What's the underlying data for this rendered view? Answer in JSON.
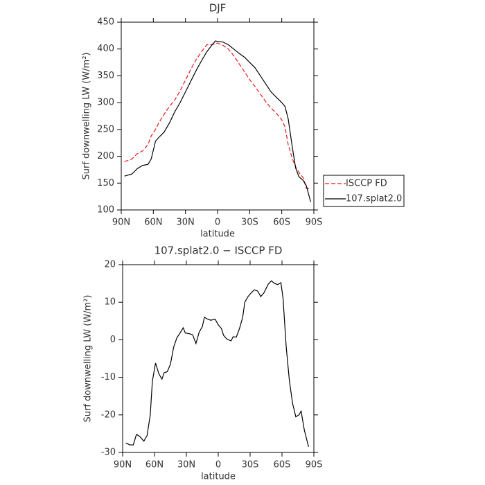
{
  "chart_data": [
    {
      "type": "line",
      "title": "DJF",
      "xlabel": "latitude",
      "ylabel": "Surf downwelling LW (W/m²)",
      "x": [
        87,
        80,
        75,
        70,
        65,
        62,
        58,
        55,
        50,
        45,
        40,
        35,
        30,
        25,
        20,
        15,
        10,
        5,
        2,
        0,
        -5,
        -10,
        -15,
        -20,
        -25,
        -30,
        -35,
        -40,
        -45,
        -50,
        -55,
        -60,
        -63,
        -66,
        -70,
        -73,
        -76,
        -80,
        -83,
        -87
      ],
      "series": [
        {
          "name": "ISCCP FD",
          "color": "#e8151b",
          "style": "dashed",
          "values": [
            190,
            195,
            205,
            210,
            222,
            238,
            250,
            262,
            278,
            293,
            305,
            322,
            342,
            362,
            380,
            395,
            408,
            408,
            410,
            411,
            407,
            400,
            388,
            373,
            358,
            343,
            330,
            316,
            302,
            290,
            280,
            268,
            255,
            222,
            195,
            180,
            170,
            160,
            140,
            140
          ]
        },
        {
          "name": "107.splat2.0",
          "color": "#000000",
          "style": "solid",
          "values": [
            163,
            167,
            177,
            183,
            185,
            195,
            228,
            235,
            245,
            262,
            283,
            300,
            320,
            340,
            360,
            378,
            395,
            408,
            415,
            414,
            413,
            408,
            400,
            392,
            385,
            375,
            365,
            350,
            335,
            320,
            310,
            300,
            293,
            270,
            215,
            178,
            162,
            155,
            145,
            115
          ]
        }
      ],
      "xlim": [
        90,
        -90
      ],
      "xticks": [
        {
          "value": 90,
          "label": "90N"
        },
        {
          "value": 60,
          "label": "60N"
        },
        {
          "value": 30,
          "label": "30N"
        },
        0,
        {
          "value": -30,
          "label": "30S"
        },
        {
          "value": -60,
          "label": "60S"
        },
        {
          "value": -90,
          "label": "90S"
        }
      ],
      "ylim": [
        100,
        450
      ],
      "yticks": [
        100,
        150,
        200,
        250,
        300,
        350,
        400,
        450
      ],
      "legend": "right"
    },
    {
      "type": "line",
      "title": "107.splat2.0 − ISCCP FD",
      "xlabel": "latitude",
      "ylabel": "Surf downwelling LW (W/m²)",
      "x": [
        87,
        83,
        80,
        77,
        74,
        70,
        67,
        64,
        62,
        59,
        56,
        53,
        51,
        48,
        45,
        42,
        39,
        36,
        33,
        31,
        27,
        24,
        21,
        18,
        15,
        13,
        10,
        7,
        3,
        0,
        -3,
        -5,
        -8,
        -12,
        -14,
        -17,
        -20,
        -23,
        -25,
        -28,
        -31,
        -34,
        -37,
        -40,
        -43,
        -47,
        -50,
        -53,
        -56,
        -59,
        -61,
        -64,
        -67,
        -70,
        -73,
        -76,
        -78,
        -81,
        -85
      ],
      "series": [
        {
          "color": "#000000",
          "style": "solid",
          "values": [
            -27.5,
            -28,
            -28,
            -25.2,
            -25.7,
            -27,
            -25.5,
            -20,
            -11,
            -6.2,
            -9,
            -10.5,
            -8.8,
            -8.5,
            -6.5,
            -2,
            0.5,
            1.8,
            3.2,
            1.8,
            1.6,
            1.3,
            -1,
            2,
            3.5,
            6,
            5.5,
            5.2,
            5.5,
            4,
            3,
            1.2,
            0.2,
            -0.3,
            0.8,
            0.7,
            3,
            6,
            10,
            11.5,
            12.5,
            13.3,
            13,
            11.5,
            12.5,
            14.8,
            15.7,
            15,
            14.7,
            15.2,
            11,
            -2,
            -11,
            -17,
            -20.5,
            -20,
            -19,
            -24,
            -28.5
          ]
        }
      ],
      "xlim": [
        90,
        -90
      ],
      "xticks": [
        {
          "value": 90,
          "label": "90N"
        },
        {
          "value": 60,
          "label": "60N"
        },
        {
          "value": 30,
          "label": "30N"
        },
        0,
        {
          "value": -30,
          "label": "30S"
        },
        {
          "value": -60,
          "label": "60S"
        },
        {
          "value": -90,
          "label": "90S"
        }
      ],
      "ylim": [
        -30,
        20
      ],
      "yticks": [
        -30,
        -20,
        -10,
        0,
        10,
        20
      ]
    }
  ]
}
